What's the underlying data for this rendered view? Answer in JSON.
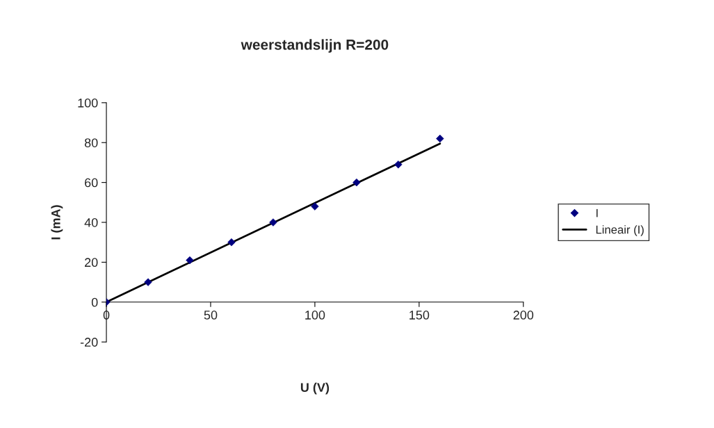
{
  "chart_data": {
    "type": "scatter",
    "title": "weerstandslijn R=200",
    "xlabel": "U (V)",
    "ylabel": "I (mA)",
    "series": [
      {
        "name": "I",
        "color": "#000080",
        "marker": "diamond",
        "x": [
          0,
          20,
          40,
          60,
          80,
          100,
          120,
          140,
          160
        ],
        "values": [
          0,
          10,
          21,
          30,
          40,
          48,
          60,
          69,
          82
        ]
      },
      {
        "name": "Lineair (I)",
        "type": "line",
        "color": "#000000",
        "marker": "none",
        "line_style": "solid",
        "x": [
          0,
          160
        ],
        "values": [
          0,
          79.5
        ]
      }
    ],
    "xlim": [
      0,
      200
    ],
    "xticks": [
      0,
      50,
      100,
      150,
      200
    ],
    "ylim": [
      -20,
      100
    ],
    "yticks": [
      -20,
      0,
      20,
      40,
      60,
      80,
      100
    ],
    "grid": false,
    "legend": "right"
  }
}
